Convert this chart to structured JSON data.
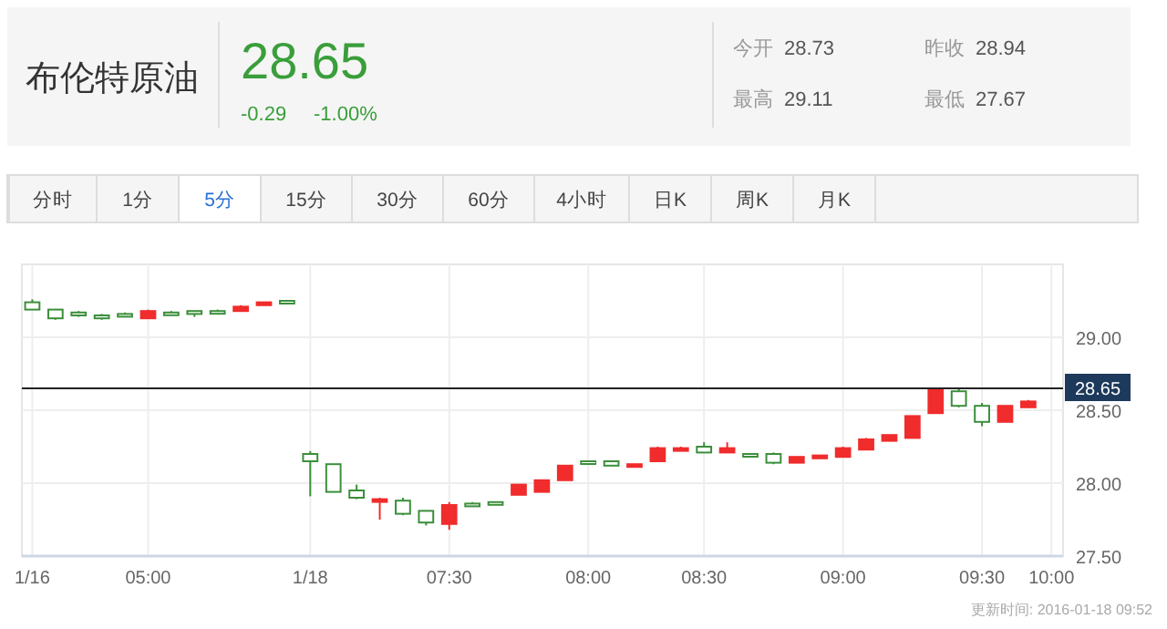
{
  "chart_data": {
    "type": "candlestick",
    "title": "布伦特原油",
    "subtitle": "28.65",
    "annotations": [
      "-0.29",
      "-1.00%",
      "今开",
      "28.73",
      "昨收",
      "28.94",
      "最高",
      "29.11",
      "最低",
      "27.67",
      "分时",
      "1分",
      "5分",
      "15分",
      "30分",
      "60分",
      "4小时",
      "日K",
      "周K",
      "月K",
      "更新时间: 2016-01-18 09:52"
    ],
    "categories": [
      "1/16",
      null,
      null,
      null,
      null,
      "05:00",
      null,
      null,
      null,
      null,
      null,
      null,
      "1/18",
      null,
      null,
      null,
      null,
      null,
      "07:30",
      null,
      null,
      null,
      null,
      null,
      "08:00",
      null,
      null,
      null,
      null,
      "08:30",
      null,
      null,
      null,
      null,
      null,
      "09:00",
      null,
      null,
      null,
      null,
      null,
      "09:30",
      null,
      null,
      "10:00"
    ],
    "ohlc": [
      [
        29.24,
        29.26,
        29.19,
        29.19
      ],
      [
        29.19,
        29.19,
        29.12,
        29.13
      ],
      [
        29.17,
        29.18,
        29.14,
        29.15
      ],
      [
        29.15,
        29.16,
        29.12,
        29.13
      ],
      [
        29.16,
        29.17,
        29.14,
        29.15
      ],
      [
        29.13,
        29.19,
        29.13,
        29.18
      ],
      [
        29.17,
        29.18,
        29.15,
        29.16
      ],
      [
        29.18,
        29.18,
        29.14,
        29.16
      ],
      [
        29.18,
        29.19,
        29.17,
        29.17
      ],
      [
        29.18,
        29.22,
        29.18,
        29.21
      ],
      [
        29.22,
        29.24,
        29.22,
        29.24
      ],
      [
        29.25,
        29.25,
        29.24,
        29.24
      ],
      [
        28.2,
        28.22,
        27.91,
        28.15
      ],
      [
        28.13,
        28.13,
        27.94,
        27.94
      ],
      [
        27.95,
        27.99,
        27.89,
        27.9
      ],
      [
        27.88,
        27.9,
        27.75,
        27.89
      ],
      [
        27.88,
        27.9,
        27.78,
        27.79
      ],
      [
        27.81,
        27.81,
        27.71,
        27.73
      ],
      [
        27.72,
        27.87,
        27.68,
        27.85
      ],
      [
        27.86,
        27.87,
        27.85,
        27.85
      ],
      [
        27.87,
        27.87,
        27.86,
        27.86
      ],
      [
        27.92,
        27.99,
        27.92,
        27.99
      ],
      [
        27.94,
        28.02,
        27.94,
        28.02
      ],
      [
        28.02,
        28.12,
        28.02,
        28.12
      ],
      [
        28.15,
        28.15,
        28.14,
        28.14
      ],
      [
        28.15,
        28.15,
        28.12,
        28.12
      ],
      [
        28.12,
        28.13,
        28.12,
        28.13
      ],
      [
        28.15,
        28.25,
        28.15,
        28.24
      ],
      [
        28.23,
        28.25,
        28.23,
        28.24
      ],
      [
        28.25,
        28.28,
        28.21,
        28.21
      ],
      [
        28.21,
        28.28,
        28.21,
        28.24
      ],
      [
        28.2,
        28.2,
        28.19,
        28.19
      ],
      [
        28.2,
        28.21,
        28.13,
        28.14
      ],
      [
        28.14,
        28.18,
        28.14,
        28.18
      ],
      [
        28.17,
        28.19,
        28.17,
        28.19
      ],
      [
        28.18,
        28.25,
        28.18,
        28.24
      ],
      [
        28.23,
        28.31,
        28.23,
        28.3
      ],
      [
        28.29,
        28.33,
        28.29,
        28.33
      ],
      [
        28.31,
        28.46,
        28.31,
        28.46
      ],
      [
        28.48,
        28.65,
        28.48,
        28.64
      ],
      [
        28.63,
        28.65,
        28.52,
        28.53
      ],
      [
        28.53,
        28.55,
        28.39,
        28.42
      ],
      [
        28.42,
        28.53,
        28.42,
        28.53
      ],
      [
        28.52,
        28.57,
        28.52,
        28.56
      ],
      null
    ],
    "colors": [
      "#3b8f3b",
      "#3b8f3b",
      "#3b8f3b",
      "#3b8f3b",
      "#3b8f3b",
      "#f02c2c",
      "#3b8f3b",
      "#3b8f3b",
      "#3b8f3b",
      "#f02c2c",
      "#f02c2c",
      "#3b8f3b",
      "#3b8f3b",
      "#3b8f3b",
      "#3b8f3b",
      "#f02c2c",
      "#3b8f3b",
      "#3b8f3b",
      "#f02c2c",
      "#3b8f3b",
      "#3b8f3b",
      "#f02c2c",
      "#f02c2c",
      "#f02c2c",
      "#3b8f3b",
      "#3b8f3b",
      "#f02c2c",
      "#f02c2c",
      "#f02c2c",
      "#3b8f3b",
      "#f02c2c",
      "#3b8f3b",
      "#3b8f3b",
      "#f02c2c",
      "#f02c2c",
      "#f02c2c",
      "#f02c2c",
      "#f02c2c",
      "#f02c2c",
      "#f02c2c",
      "#3b8f3b",
      "#3b8f3b",
      "#f02c2c",
      "#f02c2c",
      null
    ],
    "ylim": [
      27.5,
      29.5
    ],
    "yticks": [
      {
        "value": 27.5,
        "label": "27.50"
      },
      {
        "value": 28,
        "label": "28.00"
      },
      {
        "value": 28.5,
        "label": "28.50"
      },
      {
        "value": 29,
        "label": "29.00"
      }
    ],
    "ref_lines": [
      {
        "axis": "y",
        "value": 28.65,
        "label": "28.65",
        "color": "#222222"
      }
    ],
    "grid": true
  }
}
